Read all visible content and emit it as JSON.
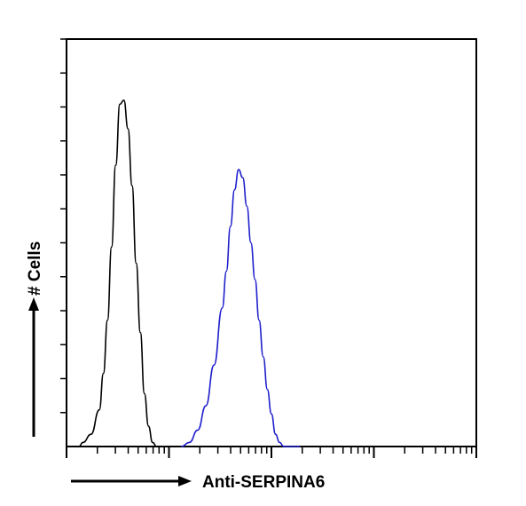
{
  "chart_data": {
    "type": "line",
    "title": "",
    "xlabel": "Anti-SERPINA6",
    "ylabel": "# Cells",
    "x_scale": "log",
    "xlim": [
      0,
      1
    ],
    "ylim": [
      0,
      1
    ],
    "grid": false,
    "legend": "none",
    "series": [
      {
        "color": "#000000",
        "x": [
          0.0,
          0.02,
          0.03,
          0.04,
          0.06,
          0.08,
          0.09,
          0.1,
          0.11,
          0.12,
          0.13,
          0.14,
          0.15,
          0.16,
          0.17,
          0.18,
          0.19,
          0.2,
          0.21,
          0.22,
          0.23
        ],
        "y": [
          0.0,
          0.0,
          0.0,
          0.01,
          0.03,
          0.09,
          0.18,
          0.31,
          0.49,
          0.69,
          0.84,
          0.85,
          0.78,
          0.64,
          0.45,
          0.28,
          0.13,
          0.05,
          0.01,
          0.0,
          0.0
        ]
      },
      {
        "color": "#1f1fcc",
        "x": [
          0.28,
          0.3,
          0.32,
          0.34,
          0.36,
          0.38,
          0.39,
          0.4,
          0.41,
          0.42,
          0.43,
          0.44,
          0.45,
          0.46,
          0.47,
          0.48,
          0.49,
          0.5,
          0.51,
          0.52,
          0.53,
          0.55,
          0.57
        ],
        "y": [
          0.0,
          0.01,
          0.04,
          0.1,
          0.2,
          0.34,
          0.43,
          0.54,
          0.63,
          0.68,
          0.66,
          0.59,
          0.5,
          0.41,
          0.31,
          0.22,
          0.14,
          0.08,
          0.03,
          0.01,
          0.0,
          0.0,
          0.0
        ]
      }
    ]
  }
}
